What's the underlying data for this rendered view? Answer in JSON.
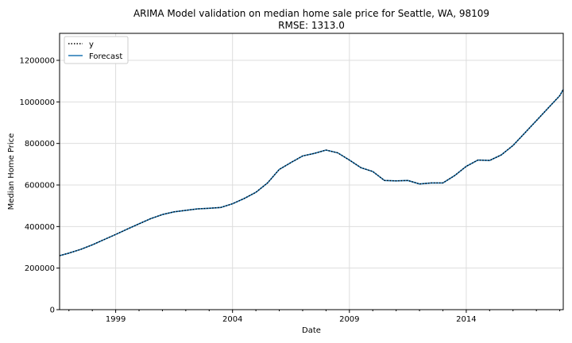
{
  "chart_data": {
    "type": "line",
    "title": "ARIMA Model validation on median home sale price for Seattle, WA, 98109",
    "subtitle": "RMSE: 1313.0",
    "xlabel": "Date",
    "ylabel": "Median Home Price",
    "xlim": [
      1996.6,
      2018.15
    ],
    "ylim": [
      0,
      1330000
    ],
    "x_tick_values": [
      1999,
      2004,
      2009,
      2014
    ],
    "x_tick_labels": [
      "1999",
      "2004",
      "2009",
      "2014"
    ],
    "y_tick_values": [
      0,
      200000,
      400000,
      600000,
      800000,
      1000000,
      1200000
    ],
    "y_tick_labels": [
      "0",
      "200000",
      "400000",
      "600000",
      "800000",
      "1000000",
      "1200000"
    ],
    "grid": true,
    "legend_position": "upper-left",
    "series": [
      {
        "name": "y",
        "style": "dotted",
        "color": "#000000",
        "x": [
          1996.6,
          1997.0,
          1997.5,
          1998.0,
          1998.5,
          1999.0,
          1999.5,
          2000.0,
          2000.5,
          2001.0,
          2001.5,
          2002.0,
          2002.5,
          2003.0,
          2003.5,
          2004.0,
          2004.5,
          2005.0,
          2005.5,
          2006.0,
          2006.5,
          2007.0,
          2007.5,
          2008.0,
          2008.5,
          2009.0,
          2009.5,
          2010.0,
          2010.5,
          2011.0,
          2011.5,
          2012.0,
          2012.5,
          2013.0,
          2013.5,
          2014.0,
          2014.5,
          2015.0,
          2015.5,
          2016.0,
          2016.5,
          2017.0,
          2017.5,
          2018.0,
          2018.15
        ],
        "y": [
          260000,
          272000,
          290000,
          312000,
          337000,
          362000,
          388000,
          413000,
          438000,
          458000,
          471000,
          478000,
          485000,
          488000,
          492000,
          510000,
          535000,
          565000,
          610000,
          675000,
          708000,
          740000,
          752000,
          768000,
          755000,
          720000,
          683000,
          665000,
          622000,
          620000,
          622000,
          605000,
          610000,
          610000,
          645000,
          690000,
          720000,
          718000,
          745000,
          790000,
          850000,
          910000,
          970000,
          1030000,
          1060000
        ]
      },
      {
        "name": "Forecast",
        "style": "solid",
        "color": "#1f77b4",
        "x": [
          1996.6,
          1997.0,
          1997.5,
          1998.0,
          1998.5,
          1999.0,
          1999.5,
          2000.0,
          2000.5,
          2001.0,
          2001.5,
          2002.0,
          2002.5,
          2003.0,
          2003.5,
          2004.0,
          2004.5,
          2005.0,
          2005.5,
          2006.0,
          2006.5,
          2007.0,
          2007.5,
          2008.0,
          2008.5,
          2009.0,
          2009.5,
          2010.0,
          2010.5,
          2011.0,
          2011.5,
          2012.0,
          2012.5,
          2013.0,
          2013.5,
          2014.0,
          2014.5,
          2015.0,
          2015.5,
          2016.0,
          2016.5,
          2017.0,
          2017.5,
          2018.0,
          2018.15
        ],
        "y": [
          260000,
          272000,
          290000,
          312000,
          337000,
          362000,
          388000,
          413000,
          438000,
          458000,
          471000,
          478000,
          485000,
          488000,
          492000,
          510000,
          535000,
          565000,
          610000,
          675000,
          708000,
          740000,
          752000,
          768000,
          755000,
          720000,
          683000,
          665000,
          622000,
          620000,
          622000,
          605000,
          610000,
          610000,
          645000,
          690000,
          720000,
          718000,
          745000,
          790000,
          850000,
          910000,
          970000,
          1030000,
          1060000
        ]
      }
    ]
  }
}
